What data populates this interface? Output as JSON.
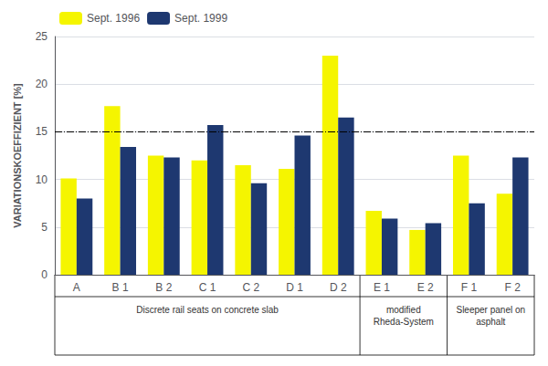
{
  "chart_data": {
    "type": "bar",
    "categories": [
      "A",
      "B 1",
      "B 2",
      "C 1",
      "C 2",
      "D 1",
      "D 2",
      "E 1",
      "E 2",
      "F 1",
      "F 2"
    ],
    "series": [
      {
        "name": "Sept. 1996",
        "color": "#F5F500",
        "values": [
          10.1,
          17.7,
          12.5,
          12.0,
          11.5,
          11.1,
          23.0,
          6.7,
          4.7,
          12.5,
          8.5
        ]
      },
      {
        "name": "Sept. 1999",
        "color": "#1E3870",
        "values": [
          8.0,
          13.4,
          12.3,
          15.7,
          9.6,
          14.6,
          16.5,
          5.9,
          5.4,
          7.5,
          12.3
        ]
      }
    ],
    "ylabel": "VARIATIONSKOEFFIZIENT [%]",
    "ylim": [
      0.0,
      25.0
    ],
    "yticks": [
      0.0,
      5.0,
      10.0,
      15.0,
      20.0,
      25.0
    ],
    "hline": 15.0,
    "grid": true,
    "legend": "upper left",
    "annotations": [
      {
        "text": "Discrete rail seats on concrete slab",
        "categories": [
          "A",
          "B 1",
          "B 2",
          "C 1",
          "C 2",
          "D 1",
          "D 2"
        ]
      },
      {
        "text": "modified\nRheda-System",
        "categories": [
          "E 1",
          "E 2"
        ]
      },
      {
        "text": "Sleeper panel on\nasphalt",
        "categories": [
          "F 1",
          "F 2"
        ]
      }
    ]
  }
}
